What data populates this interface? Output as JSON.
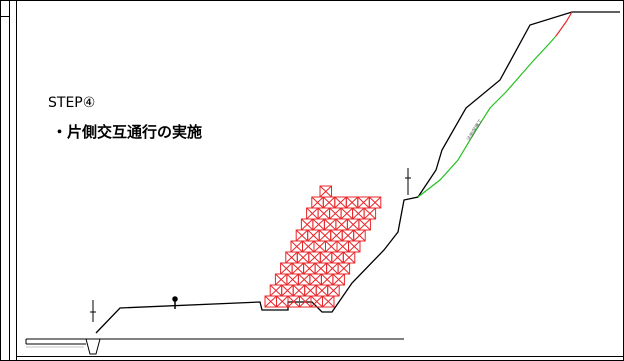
{
  "step": {
    "title": "STEP④",
    "description": "・片側交互通行の実施"
  },
  "colors": {
    "frame": "#000000",
    "ground_line": "#000000",
    "crib_frames": "#e8262a",
    "proposed_slope": "#22c11f",
    "slope_top_segment": "#e8262a"
  },
  "icons": {
    "crib_cell": "crossed-box",
    "survey_pole": "pole-marker",
    "person_marker": "figure-marker"
  },
  "crib_rows": [
    {
      "row": 1,
      "cells": 6
    },
    {
      "row": 2,
      "cells": 6
    },
    {
      "row": 3,
      "cells": 6
    },
    {
      "row": 4,
      "cells": 6
    },
    {
      "row": 5,
      "cells": 6
    },
    {
      "row": 6,
      "cells": 6
    },
    {
      "row": 7,
      "cells": 6
    },
    {
      "row": 8,
      "cells": 6
    },
    {
      "row": 9,
      "cells": 6
    },
    {
      "row": 10,
      "cells": 6
    },
    {
      "row": 11,
      "cells": 1
    }
  ]
}
